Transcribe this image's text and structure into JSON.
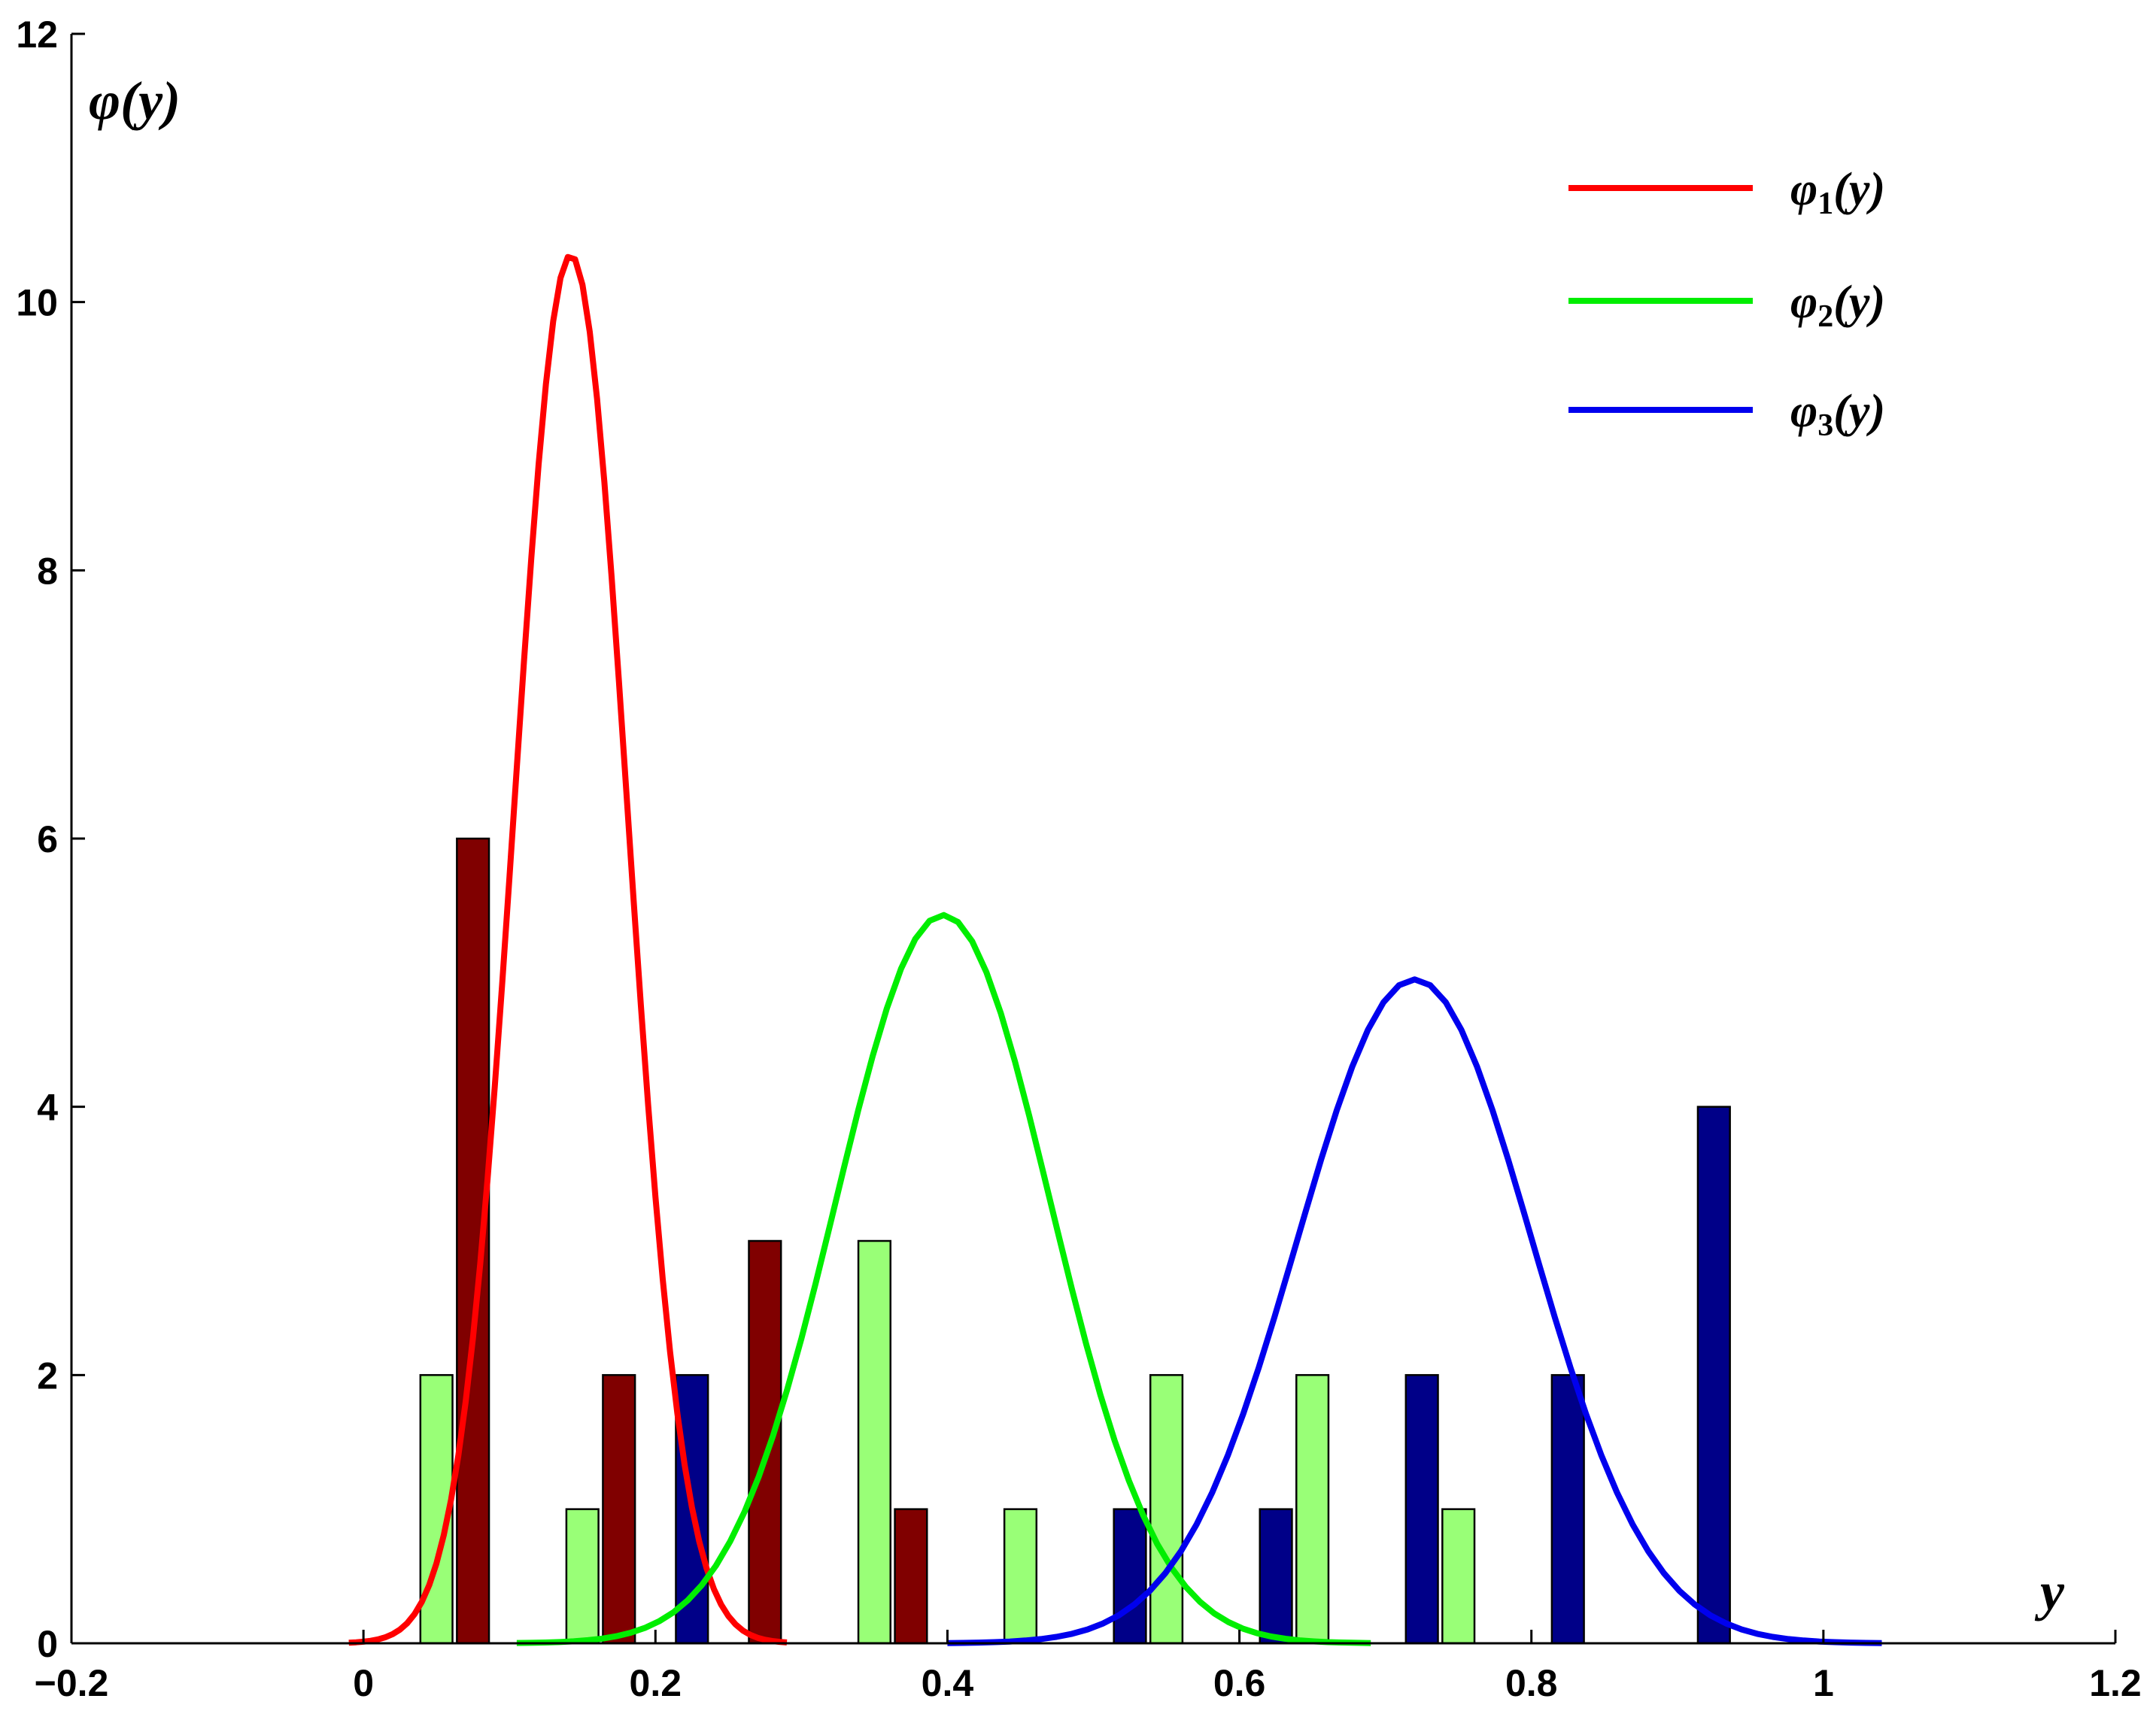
{
  "chart_data": {
    "type": "bar",
    "xlabel": "y",
    "ylabel": "φ(y)",
    "xlim": [
      -0.2,
      1.2
    ],
    "ylim": [
      0,
      12
    ],
    "xticks": [
      -0.2,
      0,
      0.2,
      0.4,
      0.6,
      0.8,
      1,
      1.2
    ],
    "xtick_labels": [
      "−0.2",
      "0",
      "0.2",
      "0.4",
      "0.6",
      "0.8",
      "1",
      "1.2"
    ],
    "yticks": [
      0,
      2,
      4,
      6,
      8,
      10,
      12
    ],
    "ytick_labels": [
      "0",
      "2",
      "4",
      "6",
      "8",
      "10",
      "12"
    ],
    "grid": false,
    "legend_position": "top-right",
    "bar_series": [
      {
        "color": "#99ff77",
        "bars": [
          [
            0.05,
            2
          ],
          [
            0.15,
            1
          ],
          [
            0.35,
            3
          ],
          [
            0.45,
            1
          ],
          [
            0.55,
            2
          ],
          [
            0.65,
            2
          ],
          [
            0.75,
            1
          ]
        ]
      },
      {
        "color": "#800000",
        "bars": [
          [
            0.075,
            6
          ],
          [
            0.175,
            2
          ],
          [
            0.275,
            3
          ],
          [
            0.375,
            1
          ]
        ]
      },
      {
        "color": "#000088",
        "bars": [
          [
            0.225,
            2
          ],
          [
            0.525,
            1
          ],
          [
            0.625,
            1
          ],
          [
            0.725,
            2
          ],
          [
            0.825,
            2
          ],
          [
            0.925,
            4
          ]
        ]
      }
    ],
    "bar_width": 0.022,
    "curves": [
      {
        "name": "φ",
        "sub": "1",
        "suffix": "(y)",
        "color": "#ff0000",
        "mean": 0.142,
        "sd": 0.0385,
        "peak": 10.35,
        "xrange": [
          -0.01,
          0.29
        ]
      },
      {
        "name": "φ",
        "sub": "2",
        "suffix": "(y)",
        "color": "#00ee00",
        "mean": 0.397,
        "sd": 0.0735,
        "peak": 5.43,
        "xrange": [
          0.105,
          0.69
        ]
      },
      {
        "name": "φ",
        "sub": "3",
        "suffix": "(y)",
        "color": "#0000ee",
        "mean": 0.72,
        "sd": 0.0805,
        "peak": 4.95,
        "xrange": [
          0.4,
          1.04
        ]
      }
    ]
  }
}
